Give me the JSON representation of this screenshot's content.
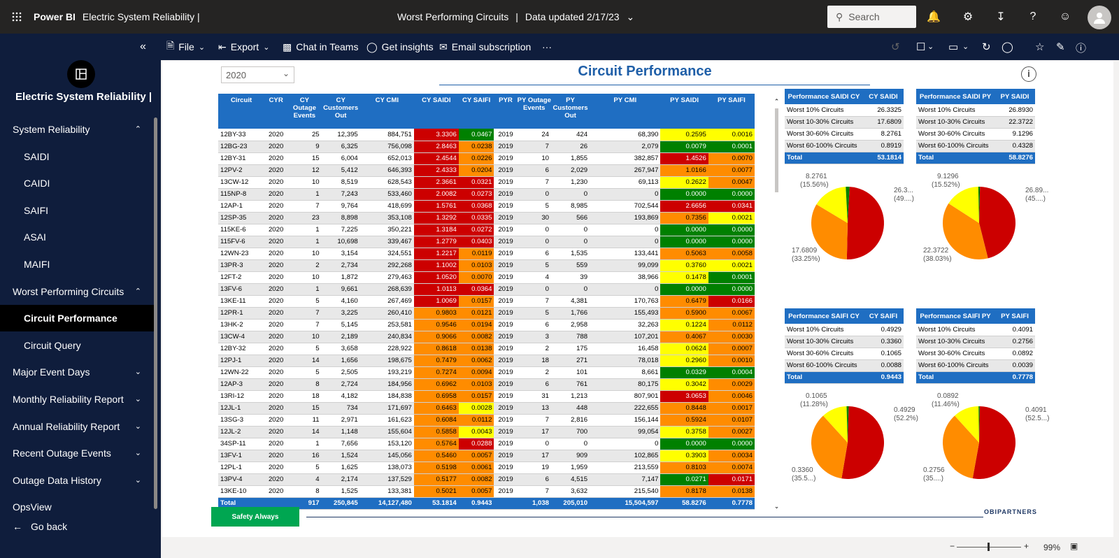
{
  "topbar": {
    "brand": "Power BI",
    "report_title": "Electric System Reliability  |",
    "page": "Worst Performing Circuits",
    "sep": "|",
    "updated": "Data updated 2/17/23",
    "search_placeholder": "Search"
  },
  "sidebar": {
    "title": "Electric System Reliability |",
    "items": [
      {
        "label": "System Reliability",
        "type": "top",
        "chev": "^"
      },
      {
        "label": "SAIDI",
        "type": "sub"
      },
      {
        "label": "CAIDI",
        "type": "sub"
      },
      {
        "label": "SAIFI",
        "type": "sub"
      },
      {
        "label": "ASAI",
        "type": "sub"
      },
      {
        "label": "MAIFI",
        "type": "sub"
      },
      {
        "label": "Worst Performing Circuits",
        "type": "top",
        "chev": "^"
      },
      {
        "label": "Circuit Performance",
        "type": "sub",
        "active": true
      },
      {
        "label": "Circuit Query",
        "type": "sub"
      },
      {
        "label": "Major Event Days",
        "type": "top",
        "chev": "v"
      },
      {
        "label": "Monthly Reliability Report",
        "type": "top",
        "chev": "v"
      },
      {
        "label": "Annual Reliability Report",
        "type": "top",
        "chev": "v"
      },
      {
        "label": "Recent Outage Events",
        "type": "top",
        "chev": "v"
      },
      {
        "label": "Outage Data History",
        "type": "top",
        "chev": "v"
      },
      {
        "label": "OpsView",
        "type": "top"
      }
    ],
    "go_back": "Go back"
  },
  "actionbar": {
    "file": "File",
    "export": "Export",
    "chat": "Chat in Teams",
    "insights": "Get insights",
    "email": "Email subscription",
    "more": "···"
  },
  "report": {
    "year": "2020",
    "title": "Circuit Performance",
    "safety": "Safety Always",
    "logo": "OBIPARTNERS",
    "zoom": "99%"
  },
  "table": {
    "headers": [
      "Circuit",
      "CYR",
      "CY Outage Events",
      "CY Customers Out",
      "CY CMI",
      "CY SAIDI",
      "CY SAIFI",
      "PYR",
      "PY Outage Events",
      "PY Customers Out",
      "PY CMI",
      "PY SAIDI",
      "PY SAIFI"
    ],
    "rows": [
      [
        "12BY-33",
        "2020",
        "25",
        "12,395",
        "884,751",
        "3.3306",
        "0.0467",
        "2019",
        "24",
        "424",
        "68,390",
        "0.2595",
        "0.0016"
      ],
      [
        "12BG-23",
        "2020",
        "9",
        "6,325",
        "756,098",
        "2.8463",
        "0.0238",
        "2019",
        "7",
        "26",
        "2,079",
        "0.0079",
        "0.0001"
      ],
      [
        "12BY-31",
        "2020",
        "15",
        "6,004",
        "652,013",
        "2.4544",
        "0.0226",
        "2019",
        "10",
        "1,855",
        "382,857",
        "1.4526",
        "0.0070"
      ],
      [
        "12PV-2",
        "2020",
        "12",
        "5,412",
        "646,393",
        "2.4333",
        "0.0204",
        "2019",
        "6",
        "2,029",
        "267,947",
        "1.0166",
        "0.0077"
      ],
      [
        "13CW-12",
        "2020",
        "10",
        "8,519",
        "628,543",
        "2.3661",
        "0.0321",
        "2019",
        "7",
        "1,230",
        "69,113",
        "0.2622",
        "0.0047"
      ],
      [
        "115NP-8",
        "2020",
        "1",
        "7,243",
        "533,460",
        "2.0082",
        "0.0273",
        "2019",
        "0",
        "0",
        "0",
        "0.0000",
        "0.0000"
      ],
      [
        "12AP-1",
        "2020",
        "7",
        "9,764",
        "418,699",
        "1.5761",
        "0.0368",
        "2019",
        "5",
        "8,985",
        "702,544",
        "2.6656",
        "0.0341"
      ],
      [
        "12SP-35",
        "2020",
        "23",
        "8,898",
        "353,108",
        "1.3292",
        "0.0335",
        "2019",
        "30",
        "566",
        "193,869",
        "0.7356",
        "0.0021"
      ],
      [
        "115KE-6",
        "2020",
        "1",
        "7,225",
        "350,221",
        "1.3184",
        "0.0272",
        "2019",
        "0",
        "0",
        "0",
        "0.0000",
        "0.0000"
      ],
      [
        "115FV-6",
        "2020",
        "1",
        "10,698",
        "339,467",
        "1.2779",
        "0.0403",
        "2019",
        "0",
        "0",
        "0",
        "0.0000",
        "0.0000"
      ],
      [
        "12WN-23",
        "2020",
        "10",
        "3,154",
        "324,551",
        "1.2217",
        "0.0119",
        "2019",
        "6",
        "1,535",
        "133,441",
        "0.5063",
        "0.0058"
      ],
      [
        "13PR-3",
        "2020",
        "2",
        "2,734",
        "292,268",
        "1.1002",
        "0.0103",
        "2019",
        "5",
        "559",
        "99,099",
        "0.3760",
        "0.0021"
      ],
      [
        "12FT-2",
        "2020",
        "10",
        "1,872",
        "279,463",
        "1.0520",
        "0.0070",
        "2019",
        "4",
        "39",
        "38,966",
        "0.1478",
        "0.0001"
      ],
      [
        "13FV-6",
        "2020",
        "1",
        "9,661",
        "268,639",
        "1.0113",
        "0.0364",
        "2019",
        "0",
        "0",
        "0",
        "0.0000",
        "0.0000"
      ],
      [
        "13KE-11",
        "2020",
        "5",
        "4,160",
        "267,469",
        "1.0069",
        "0.0157",
        "2019",
        "7",
        "4,381",
        "170,763",
        "0.6479",
        "0.0166"
      ],
      [
        "12PR-1",
        "2020",
        "7",
        "3,225",
        "260,410",
        "0.9803",
        "0.0121",
        "2019",
        "5",
        "1,766",
        "155,493",
        "0.5900",
        "0.0067"
      ],
      [
        "13HK-2",
        "2020",
        "7",
        "5,145",
        "253,581",
        "0.9546",
        "0.0194",
        "2019",
        "6",
        "2,958",
        "32,263",
        "0.1224",
        "0.0112"
      ],
      [
        "13CW-4",
        "2020",
        "10",
        "2,189",
        "240,834",
        "0.9066",
        "0.0082",
        "2019",
        "3",
        "788",
        "107,201",
        "0.4067",
        "0.0030"
      ],
      [
        "12BY-32",
        "2020",
        "5",
        "3,658",
        "228,922",
        "0.8618",
        "0.0138",
        "2019",
        "2",
        "175",
        "16,458",
        "0.0624",
        "0.0007"
      ],
      [
        "12PJ-1",
        "2020",
        "14",
        "1,656",
        "198,675",
        "0.7479",
        "0.0062",
        "2019",
        "18",
        "271",
        "78,018",
        "0.2960",
        "0.0010"
      ],
      [
        "12WN-22",
        "2020",
        "5",
        "2,505",
        "193,219",
        "0.7274",
        "0.0094",
        "2019",
        "2",
        "101",
        "8,661",
        "0.0329",
        "0.0004"
      ],
      [
        "12AP-3",
        "2020",
        "8",
        "2,724",
        "184,956",
        "0.6962",
        "0.0103",
        "2019",
        "6",
        "761",
        "80,175",
        "0.3042",
        "0.0029"
      ],
      [
        "13RI-12",
        "2020",
        "18",
        "4,182",
        "184,838",
        "0.6958",
        "0.0157",
        "2019",
        "31",
        "1,213",
        "807,901",
        "3.0653",
        "0.0046"
      ],
      [
        "12JL-1",
        "2020",
        "15",
        "734",
        "171,697",
        "0.6463",
        "0.0028",
        "2019",
        "13",
        "448",
        "222,655",
        "0.8448",
        "0.0017"
      ],
      [
        "13SG-3",
        "2020",
        "11",
        "2,971",
        "161,623",
        "0.6084",
        "0.0112",
        "2019",
        "7",
        "2,816",
        "156,144",
        "0.5924",
        "0.0107"
      ],
      [
        "12JL-2",
        "2020",
        "14",
        "1,148",
        "155,604",
        "0.5858",
        "0.0043",
        "2019",
        "17",
        "700",
        "99,054",
        "0.3758",
        "0.0027"
      ],
      [
        "34SP-11",
        "2020",
        "1",
        "7,656",
        "153,120",
        "0.5764",
        "0.0288",
        "2019",
        "0",
        "0",
        "0",
        "0.0000",
        "0.0000"
      ],
      [
        "13FV-1",
        "2020",
        "16",
        "1,524",
        "145,056",
        "0.5460",
        "0.0057",
        "2019",
        "17",
        "909",
        "102,865",
        "0.3903",
        "0.0034"
      ],
      [
        "12PL-1",
        "2020",
        "5",
        "1,625",
        "138,073",
        "0.5198",
        "0.0061",
        "2019",
        "19",
        "1,959",
        "213,559",
        "0.8103",
        "0.0074"
      ],
      [
        "13PV-4",
        "2020",
        "4",
        "2,174",
        "137,529",
        "0.5177",
        "0.0082",
        "2019",
        "6",
        "4,515",
        "7,147",
        "0.0271",
        "0.0171"
      ],
      [
        "13KE-10",
        "2020",
        "8",
        "1,525",
        "133,381",
        "0.5021",
        "0.0057",
        "2019",
        "7",
        "3,632",
        "215,540",
        "0.8178",
        "0.0138"
      ]
    ],
    "colors": [
      [
        "red",
        "grn",
        "yel",
        "yel"
      ],
      [
        "red",
        "org",
        "grn",
        "grn"
      ],
      [
        "red",
        "org",
        "red",
        "org"
      ],
      [
        "red",
        "org",
        "org",
        "org"
      ],
      [
        "red",
        "red",
        "yel",
        "org"
      ],
      [
        "red",
        "red",
        "grn",
        "grn"
      ],
      [
        "red",
        "red",
        "red",
        "red"
      ],
      [
        "red",
        "red",
        "org",
        "yel"
      ],
      [
        "red",
        "red",
        "grn",
        "grn"
      ],
      [
        "red",
        "red",
        "grn",
        "grn"
      ],
      [
        "red",
        "org",
        "org",
        "org"
      ],
      [
        "red",
        "org",
        "yel",
        "yel"
      ],
      [
        "red",
        "org",
        "yel",
        "grn"
      ],
      [
        "red",
        "red",
        "grn",
        "grn"
      ],
      [
        "red",
        "org",
        "org",
        "red"
      ],
      [
        "org",
        "org",
        "org",
        "org"
      ],
      [
        "org",
        "org",
        "yel",
        "org"
      ],
      [
        "org",
        "org",
        "org",
        "org"
      ],
      [
        "org",
        "org",
        "yel",
        "org"
      ],
      [
        "org",
        "org",
        "yel",
        "org"
      ],
      [
        "org",
        "org",
        "grn",
        "grn"
      ],
      [
        "org",
        "org",
        "yel",
        "org"
      ],
      [
        "org",
        "org",
        "red",
        "org"
      ],
      [
        "org",
        "yel",
        "org",
        "org"
      ],
      [
        "org",
        "org",
        "org",
        "org"
      ],
      [
        "org",
        "yel",
        "yel",
        "org"
      ],
      [
        "org",
        "red",
        "grn",
        "grn"
      ],
      [
        "org",
        "org",
        "yel",
        "org"
      ],
      [
        "org",
        "org",
        "org",
        "org"
      ],
      [
        "org",
        "org",
        "grn",
        "red"
      ],
      [
        "org",
        "org",
        "org",
        "org"
      ]
    ],
    "total": [
      "Total",
      "",
      "917",
      "250,845",
      "14,127,480",
      "53.1814",
      "0.9443",
      "",
      "1,038",
      "205,010",
      "15,504,597",
      "58.8276",
      "0.7778"
    ]
  },
  "perf": [
    {
      "h1": "Performance SAIDI CY",
      "h2": "CY SAIDI",
      "rows": [
        [
          "Worst 10% Circuits",
          "26.3325"
        ],
        [
          "Worst 10-30% Circuits",
          "17.6809"
        ],
        [
          "Worst 30-60% Circuits",
          "8.2761"
        ],
        [
          "Worst 60-100% Circuits",
          "0.8919"
        ]
      ],
      "total": "53.1814",
      "pie": {
        "values": [
          26.3325,
          17.6809,
          8.2761,
          0.8919
        ],
        "labels": {
          "tr": "26.3...",
          "tr2": "(49....)",
          "tl": "8.2761",
          "tl2": "(15.56%)",
          "bl": "17.6809",
          "bl2": "(33.25%)"
        }
      }
    },
    {
      "h1": "Performance SAIDI PY",
      "h2": "PY SAIDI",
      "rows": [
        [
          "Worst 10% Circuits",
          "26.8930"
        ],
        [
          "Worst 10-30% Circuits",
          "22.3722"
        ],
        [
          "Worst 30-60% Circuits",
          "9.1296"
        ],
        [
          "Worst 60-100% Circuits",
          "0.4328"
        ]
      ],
      "total": "58.8276",
      "pie": {
        "values": [
          26.893,
          22.3722,
          9.1296,
          0.4328
        ],
        "labels": {
          "tr": "26.89...",
          "tr2": "(45....)",
          "tl": "9.1296",
          "tl2": "(15.52%)",
          "bl": "22.3722",
          "bl2": "(38.03%)"
        }
      }
    },
    {
      "h1": "Performance SAIFI CY",
      "h2": "CY SAIFI",
      "rows": [
        [
          "Worst 10% Circuits",
          "0.4929"
        ],
        [
          "Worst 10-30% Circuits",
          "0.3360"
        ],
        [
          "Worst 30-60% Circuits",
          "0.1065"
        ],
        [
          "Worst 60-100% Circuits",
          "0.0088"
        ]
      ],
      "total": "0.9443",
      "pie": {
        "values": [
          0.4929,
          0.336,
          0.1065,
          0.0088
        ],
        "labels": {
          "tr": "0.4929",
          "tr2": "(52.2%)",
          "tl": "0.1065",
          "tl2": "(11.28%)",
          "bl": "0.3360",
          "bl2": "(35.5...)"
        }
      }
    },
    {
      "h1": "Performance SAIFI PY",
      "h2": "PY SAIFI",
      "rows": [
        [
          "Worst 10% Circuits",
          "0.4091"
        ],
        [
          "Worst 10-30% Circuits",
          "0.2756"
        ],
        [
          "Worst 30-60% Circuits",
          "0.0892"
        ],
        [
          "Worst 60-100% Circuits",
          "0.0039"
        ]
      ],
      "total": "0.7778",
      "pie": {
        "values": [
          0.4091,
          0.2756,
          0.0892,
          0.0039
        ],
        "labels": {
          "tr": "0.4091",
          "tr2": "(52.5...)",
          "tl": "0.0892",
          "tl2": "(11.46%)",
          "bl": "0.2756",
          "bl2": "(35....)"
        }
      }
    }
  ],
  "pie_colors": [
    "#cc0000",
    "#ff8c00",
    "#ffff00",
    "#008000"
  ]
}
